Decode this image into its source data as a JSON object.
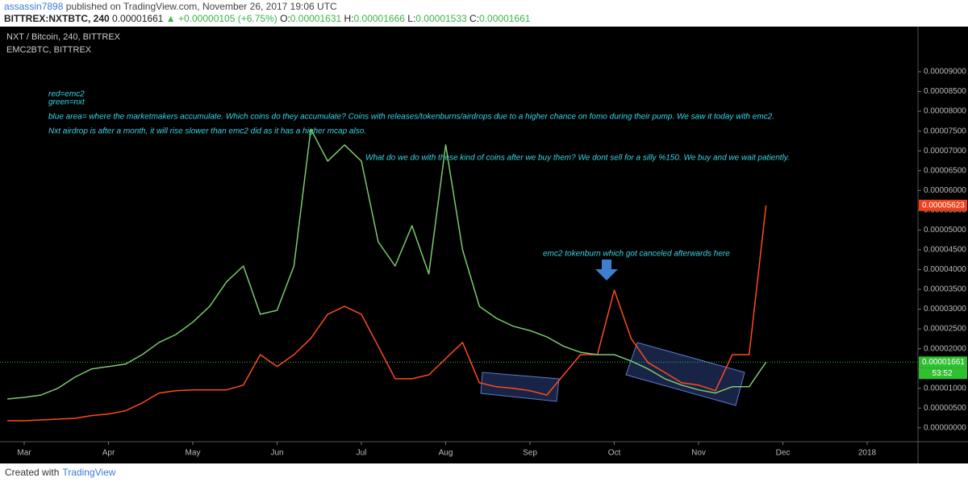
{
  "header": {
    "author": "assassin7898",
    "published": "published on TradingView.com, November 26, 2017 19:06 UTC",
    "symbol": "BITTREX:NXTBTC, 240",
    "price": "0.00001661",
    "change": "▲ +0.00000105 (+6.75%)",
    "ohlc": [
      {
        "label": "O:",
        "value": "0.00001631"
      },
      {
        "label": "H:",
        "value": "0.00001666"
      },
      {
        "label": "L:",
        "value": "0.00001533"
      },
      {
        "label": "C:",
        "value": "0.00001661"
      }
    ]
  },
  "chart_data": {
    "type": "line",
    "categories": [
      null,
      "Mar",
      null,
      null,
      null,
      null,
      "Apr",
      null,
      null,
      null,
      null,
      "May",
      null,
      null,
      null,
      null,
      "Jun",
      null,
      null,
      null,
      null,
      "Jul",
      null,
      null,
      null,
      null,
      "Aug",
      null,
      null,
      null,
      null,
      "Sep",
      null,
      null,
      null,
      null,
      "Oct",
      null,
      null,
      null,
      null,
      "Nov",
      null,
      null,
      null,
      null,
      "Dec",
      null,
      null,
      null,
      null,
      "2018",
      null,
      null,
      null
    ],
    "series": [
      {
        "name": "NXT / Bitcoin, 240, BITTREX",
        "color": "#7bc96f",
        "values": [
          7.3e-06,
          7.7e-06,
          8.3e-06,
          1e-05,
          1.28e-05,
          1.49e-05,
          1.55e-05,
          1.61e-05,
          1.85e-05,
          2.16e-05,
          2.36e-05,
          2.67e-05,
          3.07e-05,
          3.69e-05,
          4.09e-05,
          2.87e-05,
          2.97e-05,
          4.09e-05,
          7.55e-05,
          6.74e-05,
          7.15e-05,
          6.74e-05,
          4.7e-05,
          4.09e-05,
          5.11e-05,
          3.89e-05,
          7.15e-05,
          4.5e-05,
          3.07e-05,
          2.77e-05,
          2.57e-05,
          2.46e-05,
          2.3e-05,
          2.06e-05,
          1.91e-05,
          1.85e-05,
          1.85e-05,
          1.69e-05,
          1.49e-05,
          1.24e-05,
          1.08e-05,
          9.6e-06,
          8.8e-06,
          1.04e-05,
          1.04e-05,
          1.66e-05,
          null,
          null,
          null,
          null,
          null,
          null,
          null,
          null,
          null
        ]
      },
      {
        "name": "EMC2BTC, BITTREX",
        "color": "#ff4a1c",
        "values": [
          1.8e-06,
          1.8e-06,
          2e-06,
          2.2e-06,
          2.4e-06,
          3.1e-06,
          3.5e-06,
          4.3e-06,
          6.3e-06,
          8.8e-06,
          9.4e-06,
          9.6e-06,
          9.6e-06,
          9.6e-06,
          1.08e-05,
          1.85e-05,
          1.55e-05,
          1.85e-05,
          2.26e-05,
          2.87e-05,
          3.07e-05,
          2.87e-05,
          2.06e-05,
          1.24e-05,
          1.24e-05,
          1.34e-05,
          1.75e-05,
          2.16e-05,
          1.14e-05,
          1.04e-05,
          1e-05,
          9.4e-06,
          8.3e-06,
          1.34e-05,
          1.85e-05,
          1.85e-05,
          3.48e-05,
          2.26e-05,
          1.65e-05,
          1.4e-05,
          1.14e-05,
          1.08e-05,
          9.4e-06,
          1.85e-05,
          1.85e-05,
          5.62e-05,
          null,
          null,
          null,
          null,
          null,
          null,
          null,
          null,
          null
        ]
      }
    ],
    "ylim": [
      -3.5e-06,
      0.000101
    ],
    "yticks": [
      {
        "value": 0,
        "label": "0.00000000"
      },
      {
        "value": 5e-06,
        "label": "0.00000500"
      },
      {
        "value": 1e-05,
        "label": "0.00001000"
      },
      {
        "value": 1.5e-05,
        "label": "0.00001500"
      },
      {
        "value": 2e-05,
        "label": "0.00002000"
      },
      {
        "value": 2.5e-05,
        "label": "0.00002500"
      },
      {
        "value": 3e-05,
        "label": "0.00003000"
      },
      {
        "value": 3.5e-05,
        "label": "0.00003500"
      },
      {
        "value": 4e-05,
        "label": "0.00004000"
      },
      {
        "value": 4.5e-05,
        "label": "0.00004500"
      },
      {
        "value": 5e-05,
        "label": "0.00005000"
      },
      {
        "value": 5.5e-05,
        "label": "0.00005500"
      },
      {
        "value": 6e-05,
        "label": "0.00006000"
      },
      {
        "value": 6.5e-05,
        "label": "0.00006500"
      },
      {
        "value": 7e-05,
        "label": "0.00007000"
      },
      {
        "value": 7.5e-05,
        "label": "0.00007500"
      },
      {
        "value": 8e-05,
        "label": "0.00008000"
      },
      {
        "value": 8.5e-05,
        "label": "0.00008500"
      },
      {
        "value": 9e-05,
        "label": "0.00009000"
      }
    ],
    "grid": false,
    "last_prices": [
      {
        "value": 1.661e-05,
        "label": "0.00001661",
        "color": "#2fbf2f"
      },
      {
        "value": 5.623e-05,
        "label": "0.00005623",
        "color": "#f0401a"
      }
    ],
    "countdown": "53:52",
    "annotations": [
      "red=emc2",
      "green=nxt",
      "blue area= where the marketmakers accumulate. Which coins do they accumulate? Coins with releases/tokenburns/airdrops due to a higher chance on fomo during their pump. We saw it today with emc2.",
      "Nxt airdrop is after a month, it will rise slower than emc2 did as it has a higher mcap also.",
      "What do we do with these kind of coins after we buy them? We dont sell for a silly %150. We buy and we wait patiently.",
      "emc2 tokenburn which got canceled afterwards here"
    ]
  },
  "footer": {
    "created": "Created with",
    "brand": "TradingView"
  }
}
